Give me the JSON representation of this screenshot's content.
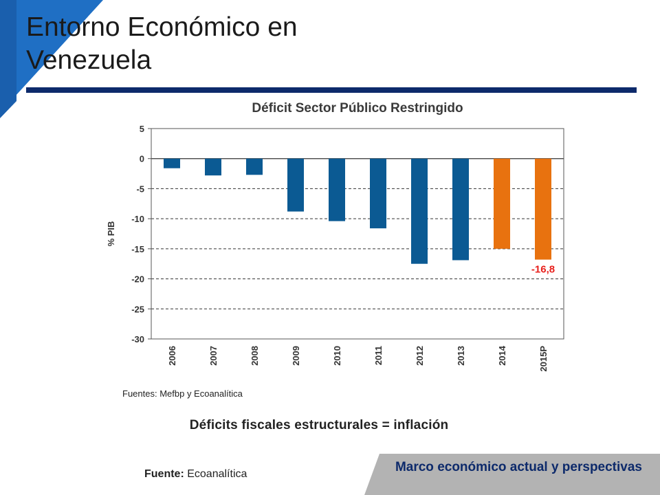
{
  "slide": {
    "title_line1": "Entorno Económico en",
    "title_line2": "Venezuela",
    "caption": "Déficits fiscales estructurales = inflación",
    "fuente_label": "Fuente:",
    "fuente_value": " Ecoanalítica",
    "footer": "Marco económico actual y perspectivas"
  },
  "colors": {
    "accent_blue": "#1f6fc4",
    "navy": "#0d2a6b",
    "bar_blue": "#0b5a93",
    "bar_orange": "#e8720f",
    "label_red": "#e8201c",
    "footer_gray": "#b3b3b3"
  },
  "chart_data": {
    "type": "bar",
    "title": "Déficit Sector Público Restringido",
    "ylabel": "% PIB",
    "xlabel": "",
    "ylim": [
      -30,
      5
    ],
    "yticks": [
      5,
      0,
      -5,
      -10,
      -15,
      -20,
      -25,
      -30
    ],
    "grid": "horizontal dashed",
    "categories": [
      "2006",
      "2007",
      "2008",
      "2009",
      "2010",
      "2011",
      "2012",
      "2013",
      "2014",
      "2015P"
    ],
    "values": [
      -1.6,
      -2.8,
      -2.7,
      -8.8,
      -10.4,
      -11.6,
      -17.5,
      -16.9,
      -15.0,
      -16.8
    ],
    "bar_colors": [
      "blue",
      "blue",
      "blue",
      "blue",
      "blue",
      "blue",
      "blue",
      "blue",
      "orange",
      "orange"
    ],
    "data_labels": [
      {
        "category": "2015P",
        "text": "-16,8"
      }
    ],
    "source": "Fuentes: Mefbp y Ecoanalítica"
  }
}
